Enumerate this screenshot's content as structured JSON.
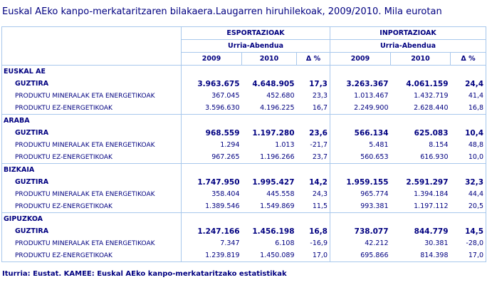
{
  "title": "Euskal AEko kanpo-merkataritzaren bilakaera.Laugarren hiruhilekoak, 2009/2010. Mila eurotan",
  "header": {
    "exports_label": "ESPORTAZIOAK",
    "imports_label": "INPORTAZIOAK",
    "period_label": "Urria-Abendua",
    "columns": [
      "2009",
      "2010",
      "Δ %",
      "2009",
      "2010",
      "Δ %"
    ]
  },
  "sections": [
    {
      "region": "EUSKAL AE",
      "rows": [
        {
          "label": "GUZTIRA",
          "values": [
            "3.963.675",
            "4.648.905",
            "17,3",
            "3.263.367",
            "4.061.159",
            "24,4"
          ]
        },
        {
          "label": "PRODUKTU MINERALAK ETA ENERGETIKOAK",
          "values": [
            "367.045",
            "452.680",
            "23,3",
            "1.013.467",
            "1.432.719",
            "41,4"
          ]
        },
        {
          "label": "PRODUKTU EZ-ENERGETIKOAK",
          "values": [
            "3.596.630",
            "4.196.225",
            "16,7",
            "2.249.900",
            "2.628.440",
            "16,8"
          ]
        }
      ]
    },
    {
      "region": "ARABA",
      "rows": [
        {
          "label": "GUZTIRA",
          "values": [
            "968.559",
            "1.197.280",
            "23,6",
            "566.134",
            "625.083",
            "10,4"
          ]
        },
        {
          "label": "PRODUKTU MINERALAK ETA ENERGETIKOAK",
          "values": [
            "1.294",
            "1.013",
            "-21,7",
            "5.481",
            "8.154",
            "48,8"
          ]
        },
        {
          "label": "PRODUKTU EZ-ENERGETIKOAK",
          "values": [
            "967.265",
            "1.196.266",
            "23,7",
            "560.653",
            "616.930",
            "10,0"
          ]
        }
      ]
    },
    {
      "region": "BIZKAIA",
      "rows": [
        {
          "label": "GUZTIRA",
          "values": [
            "1.747.950",
            "1.995.427",
            "14,2",
            "1.959.155",
            "2.591.297",
            "32,3"
          ]
        },
        {
          "label": "PRODUKTU MINERALAK ETA ENERGETIKOAK",
          "values": [
            "358.404",
            "445.558",
            "24,3",
            "965.774",
            "1.394.184",
            "44,4"
          ]
        },
        {
          "label": "PRODUKTU EZ-ENERGETIKOAK",
          "values": [
            "1.389.546",
            "1.549.869",
            "11,5",
            "993.381",
            "1.197.112",
            "20,5"
          ]
        }
      ]
    },
    {
      "region": "GIPUZKOA",
      "rows": [
        {
          "label": "GUZTIRA",
          "values": [
            "1.247.166",
            "1.456.198",
            "16,8",
            "738.077",
            "844.779",
            "14,5"
          ]
        },
        {
          "label": "PRODUKTU MINERALAK ETA ENERGETIKOAK",
          "values": [
            "7.347",
            "6.108",
            "-16,9",
            "42.212",
            "30.381",
            "-28,0"
          ]
        },
        {
          "label": "PRODUKTU EZ-ENERGETIKOAK",
          "values": [
            "1.239.819",
            "1.450.089",
            "17,0",
            "695.866",
            "814.398",
            "17,0"
          ]
        }
      ]
    }
  ],
  "source": "Iturria: Eustat. KAMEE: Euskal AEko kanpo-merkataritzako estatistikak",
  "colors": {
    "text": "#000080",
    "grid": "#a8c8ec",
    "background": "#ffffff"
  }
}
